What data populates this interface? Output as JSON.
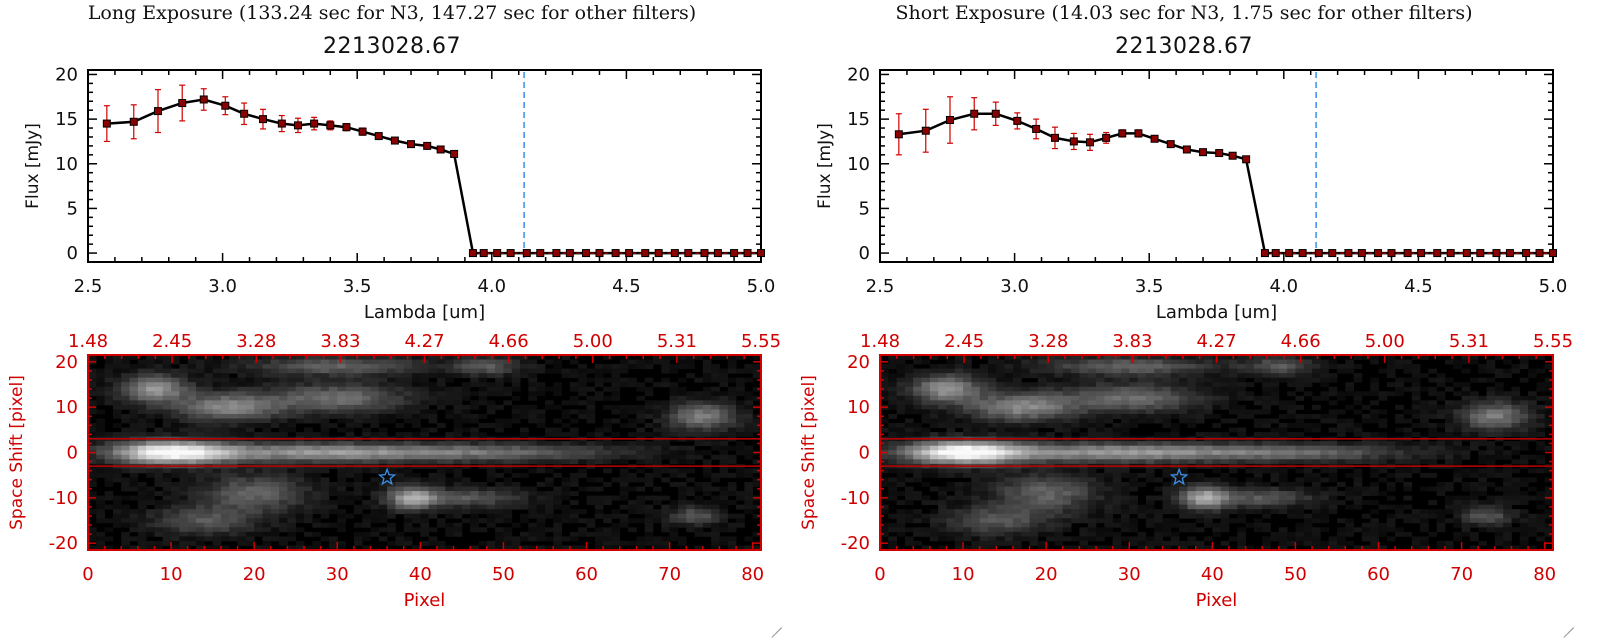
{
  "window": {
    "resize_grip": "resize-grip-icon"
  },
  "colors": {
    "spectrum_line": "#000000",
    "marker": "#8b0000",
    "error_bar": "#d00000",
    "cutoff_line": "#3a8ee8",
    "image_axes": "#d00000",
    "aperture": "#c00000",
    "star": "#3a8ee8",
    "image_bg": "#000000"
  },
  "panels": [
    {
      "suptitle": "Long Exposure (133.24 sec for N3, 147.27 sec for other filters)",
      "title": "2213028.67",
      "chart_data": [
        {
          "type": "line",
          "xlabel": "Lambda [um]",
          "ylabel": "Flux [mJy]",
          "xlim": [
            2.5,
            5.0
          ],
          "ylim": [
            -1,
            20.5
          ],
          "xticks": [
            "2.5",
            "3.0",
            "3.5",
            "4.0",
            "4.5",
            "5.0"
          ],
          "yticks": [
            "0",
            "5",
            "10",
            "15",
            "20"
          ],
          "cutoff_x": 4.12,
          "series": [
            {
              "x": [
                2.57,
                2.67,
                2.76,
                2.85,
                2.93,
                3.01,
                3.08,
                3.15,
                3.22,
                3.28,
                3.34,
                3.4,
                3.46,
                3.52,
                3.58,
                3.64,
                3.7,
                3.76,
                3.81,
                3.86,
                3.93,
                3.97,
                4.02,
                4.07,
                4.13,
                4.18,
                4.24,
                4.29,
                4.35,
                4.4,
                4.46,
                4.51,
                4.57,
                4.62,
                4.68,
                4.73,
                4.79,
                4.84,
                4.9,
                4.95,
                5.0
              ],
              "y": [
                14.5,
                14.7,
                15.9,
                16.8,
                17.2,
                16.5,
                15.6,
                15.0,
                14.5,
                14.3,
                14.5,
                14.3,
                14.1,
                13.6,
                13.1,
                12.6,
                12.2,
                12.0,
                11.6,
                11.1,
                0,
                0,
                0,
                0,
                0,
                0,
                0,
                0,
                0,
                0,
                0,
                0,
                0,
                0,
                0,
                0,
                0,
                0,
                0,
                0,
                0
              ],
              "yerr": [
                2.0,
                1.9,
                2.4,
                2.0,
                1.2,
                1.0,
                1.2,
                1.1,
                0.9,
                0.8,
                0.7,
                0.5,
                0.4,
                0.4,
                0.3,
                0.3,
                0.3,
                0.3,
                0.3,
                0.3,
                0,
                0,
                0,
                0,
                0,
                0,
                0,
                0,
                0,
                0,
                0,
                0,
                0,
                0,
                0,
                0,
                0,
                0,
                0,
                0,
                0
              ]
            }
          ]
        },
        {
          "type": "heatmap",
          "xlabel": "Pixel",
          "ylabel": "Space Shift [pixel]",
          "xlim": [
            0,
            81
          ],
          "ylim": [
            -21.5,
            21.5
          ],
          "xticks": [
            "0",
            "10",
            "20",
            "30",
            "40",
            "50",
            "60",
            "70",
            "80"
          ],
          "yticks": [
            "-20",
            "-10",
            "0",
            "10",
            "20"
          ],
          "top_xticks": [
            "1.48",
            "2.45",
            "3.28",
            "3.83",
            "4.27",
            "4.66",
            "5.00",
            "5.31",
            "5.55"
          ],
          "aperture": [
            -3,
            3
          ],
          "star": [
            36,
            -5.5
          ],
          "blobs": [
            {
              "x": 10,
              "y": 0,
              "wx": 7,
              "wy": 2.5,
              "v": 0.95
            },
            {
              "x": 28,
              "y": 0,
              "wx": 15,
              "wy": 2.0,
              "v": 0.55
            },
            {
              "x": 50,
              "y": 0,
              "wx": 14,
              "wy": 1.8,
              "v": 0.35
            },
            {
              "x": 8,
              "y": 14,
              "wx": 4,
              "wy": 3,
              "v": 0.55
            },
            {
              "x": 17,
              "y": 10,
              "wx": 6,
              "wy": 3,
              "v": 0.5
            },
            {
              "x": 30,
              "y": 12,
              "wx": 8,
              "wy": 3,
              "v": 0.4
            },
            {
              "x": 30,
              "y": 19,
              "wx": 10,
              "wy": 2,
              "v": 0.35
            },
            {
              "x": 48,
              "y": 19,
              "wx": 4,
              "wy": 2,
              "v": 0.3
            },
            {
              "x": 74,
              "y": 8,
              "wx": 4,
              "wy": 3,
              "v": 0.45
            },
            {
              "x": 39,
              "y": -10,
              "wx": 3,
              "wy": 2.5,
              "v": 0.6
            },
            {
              "x": 46,
              "y": -10,
              "wx": 6,
              "wy": 2,
              "v": 0.3
            },
            {
              "x": 20,
              "y": -9,
              "wx": 6,
              "wy": 4,
              "v": 0.35
            },
            {
              "x": 14,
              "y": -15,
              "wx": 6,
              "wy": 3,
              "v": 0.3
            },
            {
              "x": 73,
              "y": -14,
              "wx": 3,
              "wy": 2,
              "v": 0.3
            }
          ]
        }
      ]
    },
    {
      "suptitle": "Short Exposure (14.03 sec for N3, 1.75 sec for other filters)",
      "title": "2213028.67",
      "chart_data": [
        {
          "type": "line",
          "xlabel": "Lambda [um]",
          "ylabel": "Flux [mJy]",
          "xlim": [
            2.5,
            5.0
          ],
          "ylim": [
            -1,
            20.5
          ],
          "xticks": [
            "2.5",
            "3.0",
            "3.5",
            "4.0",
            "4.5",
            "5.0"
          ],
          "yticks": [
            "0",
            "5",
            "10",
            "15",
            "20"
          ],
          "cutoff_x": 4.12,
          "series": [
            {
              "x": [
                2.57,
                2.67,
                2.76,
                2.85,
                2.93,
                3.01,
                3.08,
                3.15,
                3.22,
                3.28,
                3.34,
                3.4,
                3.46,
                3.52,
                3.58,
                3.64,
                3.7,
                3.76,
                3.81,
                3.86,
                3.93,
                3.97,
                4.02,
                4.07,
                4.13,
                4.18,
                4.24,
                4.29,
                4.35,
                4.4,
                4.46,
                4.51,
                4.57,
                4.62,
                4.68,
                4.73,
                4.79,
                4.84,
                4.9,
                4.95,
                5.0
              ],
              "y": [
                13.3,
                13.7,
                14.9,
                15.6,
                15.6,
                14.8,
                13.9,
                12.9,
                12.5,
                12.4,
                12.9,
                13.4,
                13.4,
                12.8,
                12.2,
                11.6,
                11.3,
                11.2,
                10.9,
                10.5,
                0,
                0,
                0,
                0,
                0,
                0,
                0,
                0,
                0,
                0,
                0,
                0,
                0,
                0,
                0,
                0,
                0,
                0,
                0,
                0,
                0
              ],
              "yerr": [
                2.3,
                2.4,
                2.6,
                1.8,
                1.3,
                0.9,
                1.1,
                1.2,
                0.9,
                0.9,
                0.6,
                0.4,
                0.4,
                0.3,
                0.3,
                0.3,
                0.2,
                0.2,
                0.2,
                0.2,
                0,
                0,
                0,
                0,
                0,
                0,
                0,
                0,
                0,
                0,
                0,
                0,
                0,
                0,
                0,
                0,
                0,
                0,
                0,
                0,
                0
              ]
            }
          ]
        },
        {
          "type": "heatmap",
          "xlabel": "Pixel",
          "ylabel": "Space Shift [pixel]",
          "xlim": [
            0,
            81
          ],
          "ylim": [
            -21.5,
            21.5
          ],
          "xticks": [
            "0",
            "10",
            "20",
            "30",
            "40",
            "50",
            "60",
            "70",
            "80"
          ],
          "yticks": [
            "-20",
            "-10",
            "0",
            "10",
            "20"
          ],
          "top_xticks": [
            "1.48",
            "2.45",
            "3.28",
            "3.83",
            "4.27",
            "4.66",
            "5.00",
            "5.31",
            "5.55"
          ],
          "aperture": [
            -3,
            3
          ],
          "star": [
            36,
            -5.5
          ],
          "blobs": [
            {
              "x": 10,
              "y": 0,
              "wx": 7,
              "wy": 2.5,
              "v": 0.95
            },
            {
              "x": 28,
              "y": 0,
              "wx": 15,
              "wy": 2.0,
              "v": 0.55
            },
            {
              "x": 50,
              "y": 0,
              "wx": 14,
              "wy": 1.8,
              "v": 0.35
            },
            {
              "x": 8,
              "y": 14,
              "wx": 4,
              "wy": 3,
              "v": 0.55
            },
            {
              "x": 17,
              "y": 10,
              "wx": 6,
              "wy": 3,
              "v": 0.5
            },
            {
              "x": 30,
              "y": 12,
              "wx": 8,
              "wy": 3,
              "v": 0.4
            },
            {
              "x": 30,
              "y": 19,
              "wx": 10,
              "wy": 2,
              "v": 0.35
            },
            {
              "x": 48,
              "y": 19,
              "wx": 4,
              "wy": 2,
              "v": 0.3
            },
            {
              "x": 74,
              "y": 8,
              "wx": 4,
              "wy": 3,
              "v": 0.45
            },
            {
              "x": 39,
              "y": -10,
              "wx": 3,
              "wy": 2.5,
              "v": 0.6
            },
            {
              "x": 46,
              "y": -10,
              "wx": 6,
              "wy": 2,
              "v": 0.3
            },
            {
              "x": 20,
              "y": -9,
              "wx": 6,
              "wy": 4,
              "v": 0.35
            },
            {
              "x": 14,
              "y": -15,
              "wx": 6,
              "wy": 3,
              "v": 0.3
            },
            {
              "x": 73,
              "y": -14,
              "wx": 3,
              "wy": 2,
              "v": 0.3
            }
          ]
        }
      ]
    }
  ]
}
